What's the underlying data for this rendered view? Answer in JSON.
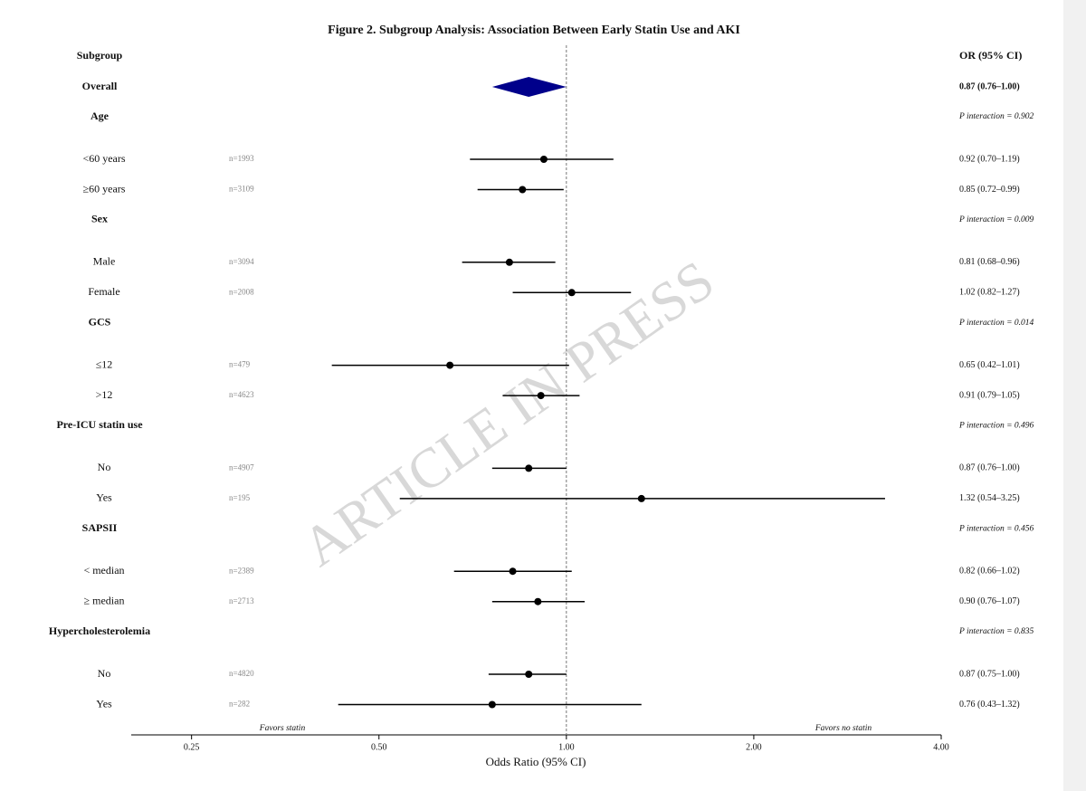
{
  "chart_data": {
    "type": "forest",
    "title": "Figure 2. Subgroup Analysis: Association Between Early Statin Use and AKI",
    "label_header": "Subgroup",
    "estimate_header": "OR (95% CI)",
    "x_label": "Odds Ratio (95% CI)",
    "favors_left": "Favors statin",
    "favors_right": "Favors no statin",
    "watermark": "ARTICLE IN PRESS",
    "log_x": true,
    "reference": 1,
    "xlim": [
      0.2,
      4
    ],
    "xticks": [
      0.25,
      {
        "value": 0.5,
        "label": "0.50"
      },
      {
        "value": 1,
        "label": "1.00"
      },
      {
        "value": 2,
        "label": "2.00"
      },
      {
        "value": 4,
        "label": "4.00"
      }
    ],
    "overall": {
      "label": "Overall",
      "or": 0.87,
      "lo": 0.76,
      "hi": 1.0,
      "text": "0.87 (0.76–1.00)",
      "color": "#00008b"
    },
    "point_color": "#000000",
    "groups": [
      {
        "name": "Age",
        "p": "P interaction = 0.902",
        "rows": [
          {
            "label": "<60 years",
            "n": "n=1993",
            "or": 0.92,
            "lo": 0.7,
            "hi": 1.19,
            "text": "0.92 (0.70–1.19)"
          },
          {
            "label": "≥60 years",
            "n": "n=3109",
            "or": 0.85,
            "lo": 0.72,
            "hi": 0.99,
            "text": "0.85 (0.72–0.99)"
          }
        ]
      },
      {
        "name": "Sex",
        "p": "P interaction = 0.009",
        "rows": [
          {
            "label": "Male",
            "n": "n=3094",
            "or": 0.81,
            "lo": 0.68,
            "hi": 0.96,
            "text": "0.81 (0.68–0.96)"
          },
          {
            "label": "Female",
            "n": "n=2008",
            "or": 1.02,
            "lo": 0.82,
            "hi": 1.27,
            "text": "1.02 (0.82–1.27)"
          }
        ]
      },
      {
        "name": "GCS",
        "p": "P interaction = 0.014",
        "rows": [
          {
            "label": "≤12",
            "n": "n=479",
            "or": 0.65,
            "lo": 0.42,
            "hi": 1.01,
            "text": "0.65 (0.42–1.01)"
          },
          {
            "label": ">12",
            "n": "n=4623",
            "or": 0.91,
            "lo": 0.79,
            "hi": 1.05,
            "text": "0.91 (0.79–1.05)"
          }
        ]
      },
      {
        "name": "Pre-ICU statin use",
        "p": "P interaction = 0.496",
        "rows": [
          {
            "label": "No",
            "n": "n=4907",
            "or": 0.87,
            "lo": 0.76,
            "hi": 1.0,
            "text": "0.87 (0.76–1.00)"
          },
          {
            "label": "Yes",
            "n": "n=195",
            "or": 1.32,
            "lo": 0.54,
            "hi": 3.25,
            "text": "1.32 (0.54–3.25)"
          }
        ]
      },
      {
        "name": "SAPSII",
        "p": "P interaction = 0.456",
        "rows": [
          {
            "label": "< median",
            "n": "n=2389",
            "or": 0.82,
            "lo": 0.66,
            "hi": 1.02,
            "text": "0.82 (0.66–1.02)"
          },
          {
            "label": "≥ median",
            "n": "n=2713",
            "or": 0.9,
            "lo": 0.76,
            "hi": 1.07,
            "text": "0.90 (0.76–1.07)"
          }
        ]
      },
      {
        "name": "Hypercholesterolemia",
        "p": "P interaction = 0.835",
        "rows": [
          {
            "label": "No",
            "n": "n=4820",
            "or": 0.87,
            "lo": 0.75,
            "hi": 1.0,
            "text": "0.87 (0.75–1.00)"
          },
          {
            "label": "Yes",
            "n": "n=282",
            "or": 0.76,
            "lo": 0.43,
            "hi": 1.32,
            "text": "0.76 (0.43–1.32)"
          }
        ]
      }
    ]
  }
}
